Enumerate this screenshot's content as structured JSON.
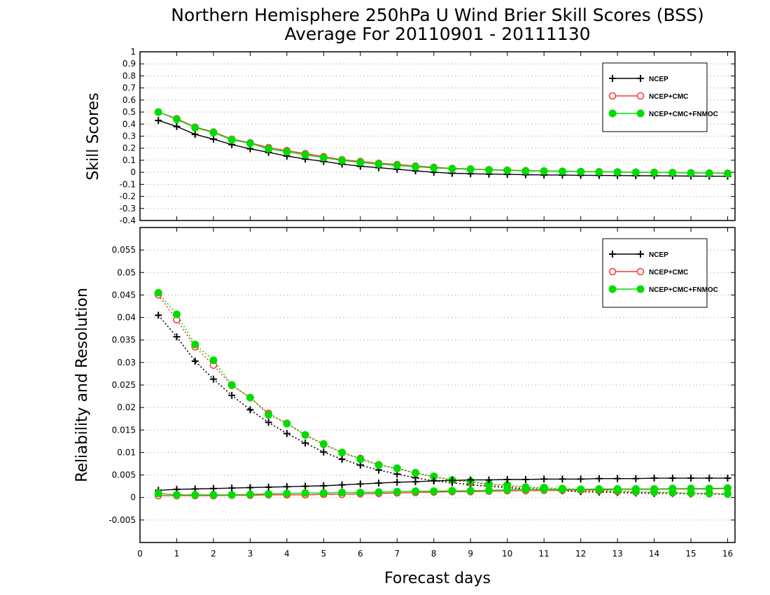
{
  "chart_data": [
    {
      "type": "line",
      "title": "Northern Hemisphere 250hPa U Wind Brier Skill Scores (BSS)",
      "subtitle": "Average For 20110901 - 20111130",
      "ylabel": "Skill Scores",
      "xlabel": "",
      "xlim": [
        0,
        16.2
      ],
      "ylim": [
        -0.4,
        1
      ],
      "yticks": [
        -0.4,
        -0.3,
        -0.2,
        -0.1,
        0,
        0.1,
        0.2,
        0.3,
        0.4,
        0.5,
        0.6,
        0.7,
        0.8,
        0.9,
        1
      ],
      "ytick_labels": [
        "-0.4",
        "-0.3",
        "-0.2",
        "-0.1",
        "0",
        "0.1",
        "0.2",
        "0.3",
        "0.4",
        "0.5",
        "0.6",
        "0.7",
        "0.8",
        "0.9",
        "1"
      ],
      "grid": true,
      "legend_position": "top-right",
      "x": [
        0.5,
        1,
        1.5,
        2,
        2.5,
        3,
        3.5,
        4,
        4.5,
        5,
        5.5,
        6,
        6.5,
        7,
        7.5,
        8,
        8.5,
        9,
        9.5,
        10,
        10.5,
        11,
        11.5,
        12,
        12.5,
        13,
        13.5,
        14,
        14.5,
        15,
        15.5,
        16
      ],
      "series": [
        {
          "name": "NCEP",
          "color": "#000000",
          "marker": "plus",
          "values": [
            0.43,
            0.38,
            0.315,
            0.275,
            0.23,
            0.195,
            0.165,
            0.135,
            0.11,
            0.09,
            0.068,
            0.05,
            0.038,
            0.025,
            0.012,
            0.0,
            -0.008,
            -0.012,
            -0.015,
            -0.017,
            -0.02,
            -0.022,
            -0.023,
            -0.025,
            -0.026,
            -0.027,
            -0.028,
            -0.029,
            -0.03,
            -0.031,
            -0.032,
            -0.033
          ]
        },
        {
          "name": "NCEP+CMC",
          "color": "#ff3333",
          "marker": "open-circle",
          "values": [
            0.5,
            0.445,
            0.375,
            0.335,
            0.275,
            0.245,
            0.205,
            0.18,
            0.155,
            0.13,
            0.105,
            0.09,
            0.075,
            0.065,
            0.052,
            0.042,
            0.033,
            0.028,
            0.022,
            0.018,
            0.014,
            0.012,
            0.009,
            0.007,
            0.005,
            0.003,
            0.001,
            0.0,
            -0.002,
            -0.004,
            -0.006,
            -0.008
          ]
        },
        {
          "name": "NCEP+CMC+FNMOC",
          "color": "#00dd00",
          "marker": "filled-circle",
          "values": [
            0.5,
            0.44,
            0.37,
            0.33,
            0.27,
            0.24,
            0.195,
            0.17,
            0.145,
            0.122,
            0.098,
            0.083,
            0.068,
            0.058,
            0.046,
            0.037,
            0.03,
            0.025,
            0.02,
            0.016,
            0.012,
            0.01,
            0.008,
            0.006,
            0.004,
            0.002,
            0.0,
            -0.001,
            -0.003,
            -0.005,
            -0.007,
            -0.009
          ]
        }
      ]
    },
    {
      "type": "line",
      "title": "",
      "ylabel": "Reliability and Resolution",
      "xlabel": "Forecast days",
      "xlim": [
        0,
        16.2
      ],
      "ylim": [
        -0.01,
        0.06
      ],
      "xticks": [
        0,
        1,
        2,
        3,
        4,
        5,
        6,
        7,
        8,
        9,
        10,
        11,
        12,
        13,
        14,
        15,
        16
      ],
      "xtick_labels": [
        "0",
        "1",
        "2",
        "3",
        "4",
        "5",
        "6",
        "7",
        "8",
        "9",
        "10",
        "11",
        "12",
        "13",
        "14",
        "15",
        "16"
      ],
      "yticks": [
        -0.005,
        0,
        0.005,
        0.01,
        0.015,
        0.02,
        0.025,
        0.03,
        0.035,
        0.04,
        0.045,
        0.05,
        0.055
      ],
      "ytick_labels": [
        "-0.005",
        "0",
        "0.005",
        "0.01",
        "0.015",
        "0.02",
        "0.025",
        "0.03",
        "0.035",
        "0.04",
        "0.045",
        "0.05",
        "0.055"
      ],
      "grid": true,
      "legend_position": "top-right",
      "x": [
        0.5,
        1,
        1.5,
        2,
        2.5,
        3,
        3.5,
        4,
        4.5,
        5,
        5.5,
        6,
        6.5,
        7,
        7.5,
        8,
        8.5,
        9,
        9.5,
        10,
        10.5,
        11,
        11.5,
        12,
        12.5,
        13,
        13.5,
        14,
        14.5,
        15,
        15.5,
        16
      ],
      "series": [
        {
          "name": "NCEP",
          "group": "resolution",
          "line_style": "dotted",
          "color": "#000000",
          "marker": "plus",
          "values": [
            0.0405,
            0.0357,
            0.0303,
            0.0263,
            0.0227,
            0.0195,
            0.0167,
            0.0142,
            0.0121,
            0.0101,
            0.0085,
            0.0072,
            0.0061,
            0.0052,
            0.0044,
            0.0037,
            0.0033,
            0.0028,
            0.0025,
            0.0022,
            0.0019,
            0.0017,
            0.0015,
            0.0013,
            0.0012,
            0.0011,
            0.001,
            0.0009,
            0.0009,
            0.0008,
            0.0008,
            0.0007
          ]
        },
        {
          "name": "NCEP+CMC",
          "group": "resolution",
          "line_style": "dotted",
          "color": "#ff3333",
          "marker": "open-circle",
          "values": [
            0.045,
            0.0395,
            0.0335,
            0.0294,
            0.0249,
            0.0222,
            0.0187,
            0.0165,
            0.0139,
            0.0118,
            0.01,
            0.0087,
            0.0073,
            0.0064,
            0.0054,
            0.0046,
            0.0038,
            0.0034,
            0.0029,
            0.0025,
            0.0022,
            0.002,
            0.0018,
            0.0016,
            0.0015,
            0.0013,
            0.0012,
            0.0011,
            0.001,
            0.0009,
            0.0009,
            0.0008
          ]
        },
        {
          "name": "NCEP+CMC+FNMOC",
          "group": "resolution",
          "line_style": "dotted",
          "color": "#00dd00",
          "marker": "filled-circle",
          "values": [
            0.0455,
            0.0407,
            0.034,
            0.0305,
            0.025,
            0.0222,
            0.0184,
            0.0164,
            0.0139,
            0.0119,
            0.01,
            0.0085,
            0.0072,
            0.0065,
            0.0055,
            0.0047,
            0.0039,
            0.0036,
            0.003,
            0.0028,
            0.0023,
            0.0022,
            0.002,
            0.0018,
            0.0016,
            0.0015,
            0.0013,
            0.0012,
            0.0011,
            0.001,
            0.0009,
            0.0008
          ]
        },
        {
          "name": "NCEP",
          "group": "reliability",
          "line_style": "solid",
          "color": "#000000",
          "marker": "plus",
          "values": [
            0.0016,
            0.0018,
            0.0019,
            0.002,
            0.0021,
            0.0022,
            0.0023,
            0.0024,
            0.0025,
            0.0026,
            0.0028,
            0.003,
            0.0032,
            0.0034,
            0.0035,
            0.0037,
            0.0038,
            0.0039,
            0.0039,
            0.004,
            0.004,
            0.0041,
            0.0041,
            0.0041,
            0.0042,
            0.0042,
            0.0042,
            0.0043,
            0.0043,
            0.0043,
            0.0043,
            0.0043
          ]
        },
        {
          "name": "NCEP+CMC",
          "group": "reliability",
          "line_style": "solid",
          "color": "#ff3333",
          "marker": "open-circle",
          "values": [
            0.0004,
            0.0004,
            0.0004,
            0.0004,
            0.0005,
            0.0005,
            0.0006,
            0.0006,
            0.0006,
            0.0007,
            0.0007,
            0.0008,
            0.0009,
            0.001,
            0.0011,
            0.0012,
            0.0013,
            0.0013,
            0.0014,
            0.0015,
            0.0015,
            0.0016,
            0.0016,
            0.0017,
            0.0017,
            0.0018,
            0.0018,
            0.0018,
            0.0019,
            0.0019,
            0.0019,
            0.002
          ]
        },
        {
          "name": "NCEP+CMC+FNMOC",
          "group": "reliability",
          "line_style": "solid",
          "color": "#00dd00",
          "marker": "filled-circle",
          "values": [
            0.0009,
            0.0006,
            0.0006,
            0.0006,
            0.0006,
            0.0007,
            0.0008,
            0.0009,
            0.001,
            0.001,
            0.0011,
            0.0011,
            0.0012,
            0.0013,
            0.0014,
            0.0014,
            0.0015,
            0.0015,
            0.0016,
            0.0017,
            0.0018,
            0.0018,
            0.0018,
            0.0018,
            0.0019,
            0.0019,
            0.0019,
            0.0019,
            0.002,
            0.002,
            0.002,
            0.0021
          ]
        }
      ]
    }
  ]
}
